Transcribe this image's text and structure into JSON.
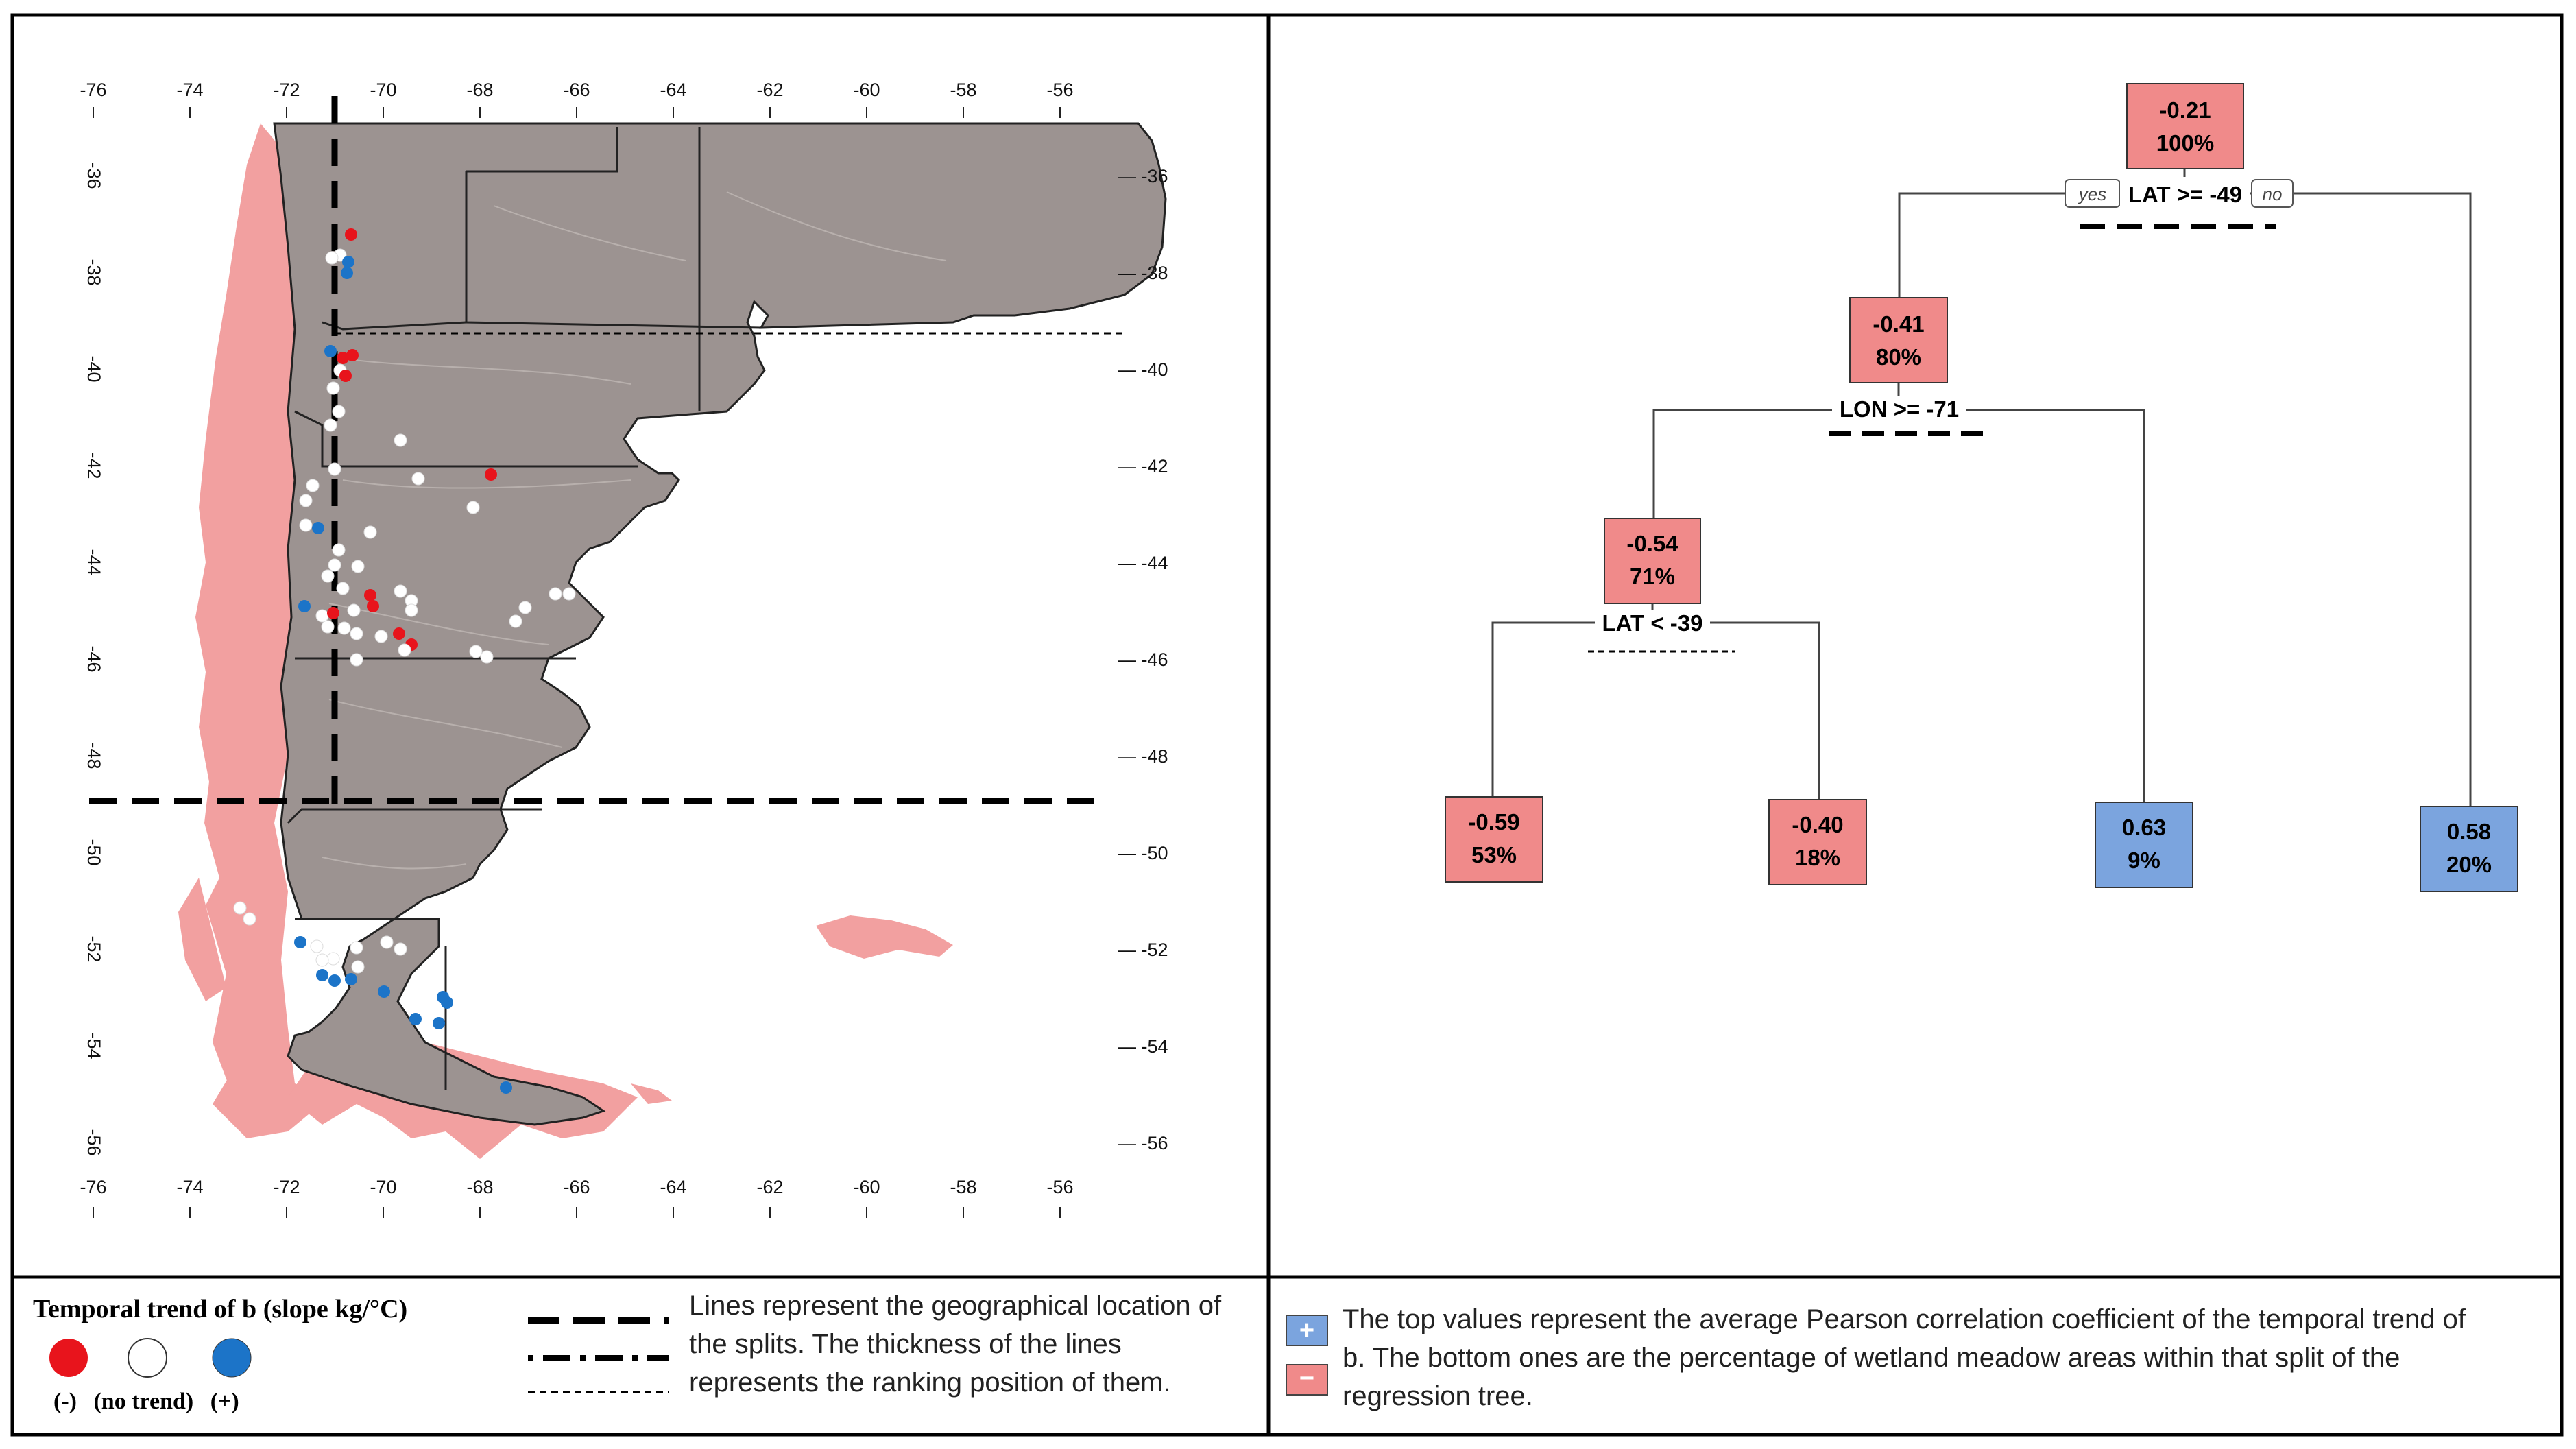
{
  "colors": {
    "negative": "#f08a8a",
    "positive": "#7ba4de",
    "land": "#9c9391",
    "coast": "#f2a0a0",
    "trend_negative": "#e8141c",
    "trend_positive": "#1c74c8"
  },
  "map": {
    "lon_ticks": [
      "-76",
      "-74",
      "-72",
      "-70",
      "-68",
      "-66",
      "-64",
      "-62",
      "-60",
      "-58",
      "-56"
    ],
    "lat_ticks": [
      "-36",
      "-38",
      "-40",
      "-42",
      "-44",
      "-46",
      "-48",
      "-50",
      "-52",
      "-54",
      "-56"
    ]
  },
  "tree": {
    "nodes": [
      {
        "id": "root",
        "value": "-0.21",
        "pct": "100%",
        "sign": "negative"
      },
      {
        "id": "n2",
        "value": "-0.41",
        "pct": "80%",
        "sign": "negative"
      },
      {
        "id": "n4",
        "value": "-0.54",
        "pct": "71%",
        "sign": "negative"
      },
      {
        "id": "leaf1",
        "value": "-0.59",
        "pct": "53%",
        "sign": "negative"
      },
      {
        "id": "leaf2",
        "value": "-0.40",
        "pct": "18%",
        "sign": "negative"
      },
      {
        "id": "leaf3",
        "value": "0.63",
        "pct": "9%",
        "sign": "positive"
      },
      {
        "id": "leaf4",
        "value": "0.58",
        "pct": "20%",
        "sign": "positive"
      }
    ],
    "splits": {
      "s1": "LAT >= -49",
      "s2": "LON >= -71",
      "s3": "LAT < -39"
    },
    "yes_label": "yes",
    "no_label": "no"
  },
  "legend": {
    "title": "Temporal trend of b (slope kg/°C)",
    "neg_label": "(-)",
    "none_label": "(no trend)",
    "pos_label": "(+)",
    "lines_text": "Lines represent the geographical location of the splits. The thickness of the lines represents the ranking position of them.",
    "plus_symbol": "+",
    "minus_symbol": "−",
    "tree_text": "The top values represent the average Pearson correlation coefficient of the temporal trend of b. The bottom ones are the percentage of wetland meadow areas within that split of the regression tree."
  }
}
